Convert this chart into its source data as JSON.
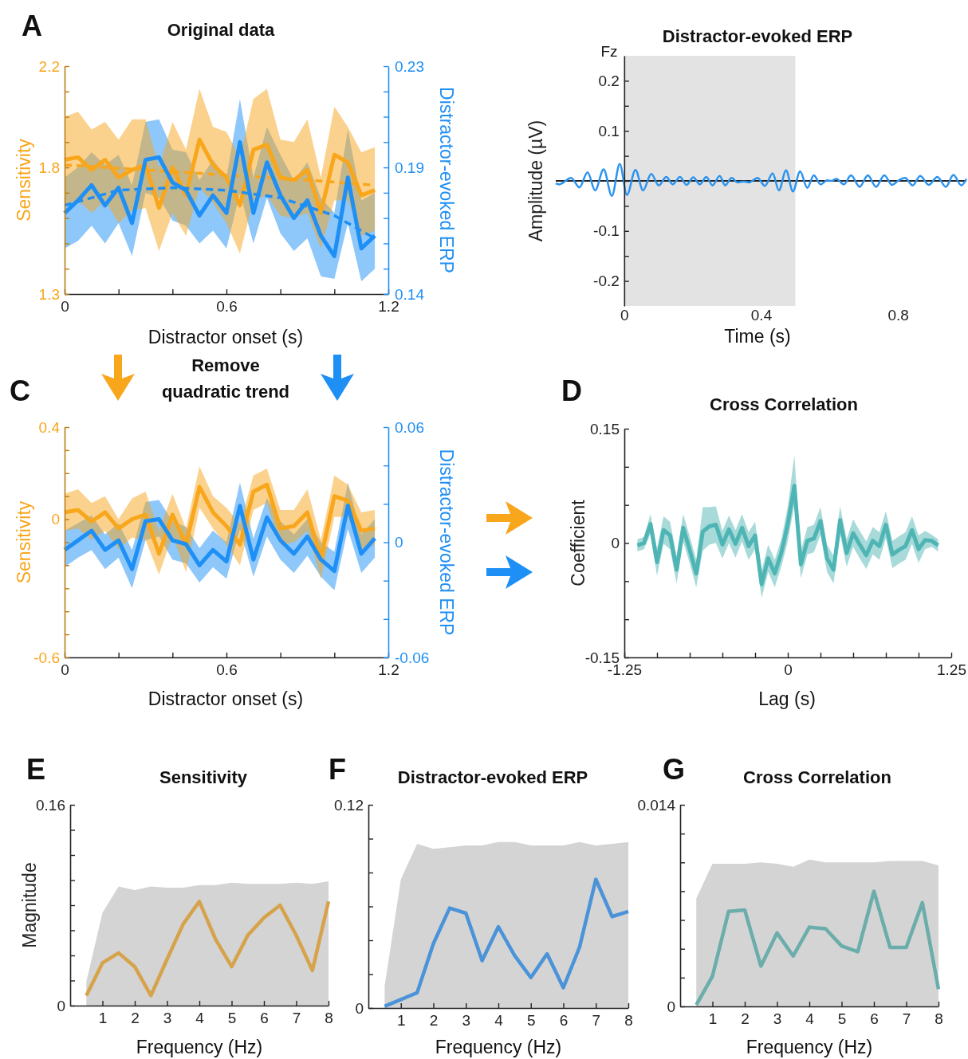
{
  "chart_data": [
    {
      "type": "line",
      "title": "Original data",
      "xlabel": "Distractor onset (s)",
      "ylabel": "Sensitivity",
      "y2label": "Distractor-evoked ERP",
      "annotations": [
        "A"
      ],
      "x": [
        0,
        0.05,
        0.1,
        0.15,
        0.2,
        0.25,
        0.3,
        0.35,
        0.4,
        0.45,
        0.5,
        0.55,
        0.6,
        0.65,
        0.7,
        0.75,
        0.8,
        0.85,
        0.9,
        0.95,
        1,
        1.05,
        1.1,
        1.15
      ],
      "series": [
        {
          "color": "#f8a61c",
          "values": [
            1.83,
            1.84,
            1.79,
            1.83,
            1.76,
            1.79,
            1.81,
            1.64,
            1.8,
            1.69,
            1.91,
            1.81,
            1.76,
            1.65,
            1.87,
            1.89,
            1.76,
            1.75,
            1.79,
            1.62,
            1.85,
            1.82,
            1.69,
            1.71
          ],
          "upper": [
            2.0,
            2.02,
            1.95,
            1.98,
            1.91,
            1.99,
            1.99,
            1.8,
            1.98,
            1.87,
            2.11,
            1.96,
            1.94,
            1.84,
            2.07,
            2.11,
            1.91,
            1.9,
            1.99,
            1.76,
            2.04,
            1.96,
            1.86,
            1.88
          ],
          "lower": [
            1.65,
            1.67,
            1.62,
            1.67,
            1.58,
            1.63,
            1.64,
            1.47,
            1.62,
            1.53,
            1.72,
            1.66,
            1.58,
            1.46,
            1.67,
            1.69,
            1.61,
            1.6,
            1.62,
            1.48,
            1.67,
            1.67,
            1.53,
            1.55
          ]
        },
        {
          "type": "line",
          "line_style": "dashed",
          "color": "#f8a61c",
          "x": [
            0,
            0.3,
            0.6,
            0.9,
            1.15
          ],
          "values": [
            1.81,
            1.79,
            1.77,
            1.75,
            1.73
          ]
        },
        {
          "axis": "y2",
          "color": "#1e8ff5",
          "values": [
            0.172,
            0.177,
            0.183,
            0.175,
            0.182,
            0.168,
            0.193,
            0.194,
            0.184,
            0.181,
            0.171,
            0.179,
            0.172,
            0.2,
            0.172,
            0.192,
            0.179,
            0.17,
            0.177,
            0.163,
            0.155,
            0.186,
            0.158,
            0.163
          ],
          "upper": [
            0.186,
            0.19,
            0.196,
            0.191,
            0.195,
            0.183,
            0.208,
            0.209,
            0.197,
            0.196,
            0.185,
            0.193,
            0.186,
            0.217,
            0.186,
            0.206,
            0.195,
            0.185,
            0.192,
            0.178,
            0.172,
            0.205,
            0.177,
            0.18
          ],
          "lower": [
            0.158,
            0.161,
            0.167,
            0.16,
            0.168,
            0.155,
            0.18,
            0.178,
            0.169,
            0.167,
            0.16,
            0.165,
            0.158,
            0.18,
            0.16,
            0.178,
            0.164,
            0.157,
            0.162,
            0.147,
            0.146,
            0.168,
            0.145,
            0.15
          ]
        },
        {
          "type": "line",
          "line_style": "dashed",
          "axis": "y2",
          "color": "#1e8ff5",
          "x": [
            0,
            0.2,
            0.4,
            0.6,
            0.8,
            1,
            1.15
          ],
          "values": [
            0.175,
            0.181,
            0.182,
            0.181,
            0.178,
            0.171,
            0.162
          ]
        }
      ],
      "xlim": [
        0,
        1.2
      ],
      "xticks": [
        0,
        {
          "value": 0.2,
          "label": null
        },
        {
          "value": 0.4,
          "label": null
        },
        0.6,
        {
          "value": 0.8,
          "label": null
        },
        {
          "value": 1,
          "label": null
        },
        1.2
      ],
      "ylim": [
        1.3,
        2.2
      ],
      "yticks": [
        1.3,
        {
          "value": 1.4,
          "label": null
        },
        {
          "value": 1.5,
          "label": null
        },
        {
          "value": 1.6,
          "label": null
        },
        {
          "value": 1.7,
          "label": null
        },
        1.8,
        {
          "value": 1.9,
          "label": null
        },
        {
          "value": 2,
          "label": null
        },
        {
          "value": 2.1,
          "label": null
        },
        2.2
      ],
      "y2lim": [
        0.14,
        0.23
      ],
      "y2ticks": [
        0.14,
        {
          "value": 0.15,
          "label": null
        },
        {
          "value": 0.16,
          "label": null
        },
        {
          "value": 0.17,
          "label": null
        },
        {
          "value": 0.18,
          "label": null
        },
        0.19,
        {
          "value": 0.2,
          "label": null
        },
        {
          "value": 0.21,
          "label": null
        },
        {
          "value": 0.22,
          "label": null
        },
        0.23
      ]
    },
    {
      "type": "line",
      "title": "Distractor-evoked ERP",
      "xlabel": "Time (s)",
      "ylabel": "Amplitude (µV)",
      "annotations": [
        "Fz"
      ],
      "x": [
        -0.2,
        -0.19,
        -0.155,
        -0.131,
        -0.107,
        -0.085,
        -0.06,
        -0.036,
        -0.013,
        0.008,
        0.033,
        0.055,
        0.079,
        0.101,
        0.123,
        0.142,
        0.163,
        0.182,
        0.202,
        0.221,
        0.24,
        0.258,
        0.279,
        0.295,
        0.314,
        0.331,
        0.349,
        0.365,
        0.39,
        0.411,
        0.434,
        0.452,
        0.473,
        0.493,
        0.514,
        0.535,
        0.554,
        0.574,
        0.593,
        0.605,
        0.62,
        0.642,
        0.663,
        0.688,
        0.712,
        0.736,
        0.76,
        0.783,
        0.802,
        0.821,
        0.843,
        0.865,
        0.89,
        0.915,
        0.94,
        0.962,
        0.985,
        1.0
      ],
      "series": [
        {
          "color": "#2a93f0",
          "values": [
            -0.005,
            -0.007,
            0.006,
            -0.013,
            0.017,
            -0.019,
            0.023,
            -0.03,
            0.034,
            -0.028,
            0.022,
            -0.019,
            0.014,
            -0.009,
            0.008,
            -0.007,
            0.008,
            -0.008,
            0.007,
            -0.007,
            0.008,
            -0.009,
            0.01,
            -0.009,
            0.006,
            -0.003,
            -0.001,
            -0.003,
            0.006,
            -0.01,
            0.015,
            -0.019,
            0.021,
            -0.021,
            0.019,
            -0.014,
            0.011,
            -0.007,
            0.001,
            0.0,
            0.004,
            -0.007,
            0.011,
            -0.012,
            0.011,
            -0.012,
            0.011,
            -0.008,
            0.001,
            0.006,
            -0.009,
            0.01,
            -0.008,
            0.008,
            -0.012,
            0.012,
            -0.009,
            0.004
          ]
        }
      ],
      "bands": [
        {
          "axis": "x",
          "from": 0,
          "to": 0.5,
          "color": "#e3e3e3"
        }
      ],
      "ref_lines": [
        {
          "axis": "y",
          "value": 0
        }
      ],
      "xlim": [
        -0.2,
        1.0
      ],
      "xticks": [
        0,
        0.4,
        0.8
      ],
      "ylim": [
        -0.25,
        0.25
      ],
      "yticks": [
        -0.2,
        {
          "value": -0.15,
          "label": null
        },
        -0.1,
        {
          "value": -0.05,
          "label": null
        },
        {
          "value": 0,
          "label": null
        },
        {
          "value": 0.05,
          "label": null
        },
        0.1,
        {
          "value": 0.15,
          "label": null
        },
        0.2
      ]
    },
    {
      "type": "line",
      "xlabel": "Distractor onset (s)",
      "ylabel": "Sensitivity",
      "y2label": "Distractor-evoked ERP",
      "annotations": [
        "C",
        "Remove quadratic trend"
      ],
      "x": [
        0,
        0.05,
        0.1,
        0.15,
        0.2,
        0.25,
        0.3,
        0.35,
        0.4,
        0.45,
        0.5,
        0.55,
        0.6,
        0.65,
        0.7,
        0.75,
        0.8,
        0.85,
        0.9,
        0.95,
        1,
        1.05,
        1.1,
        1.15
      ],
      "series": [
        {
          "color": "#f8a61c",
          "values": [
            0.03,
            0.04,
            -0.01,
            0.03,
            -0.04,
            0.0,
            0.02,
            -0.15,
            0.02,
            -0.11,
            0.14,
            0.03,
            -0.03,
            -0.11,
            0.12,
            0.15,
            -0.04,
            -0.03,
            0.03,
            -0.17,
            0.1,
            0.08,
            -0.05,
            -0.04
          ],
          "upper": [
            0.11,
            0.13,
            0.07,
            0.1,
            0.0,
            0.09,
            0.12,
            -0.05,
            0.11,
            -0.04,
            0.23,
            0.1,
            0.05,
            -0.02,
            0.19,
            0.22,
            0.04,
            0.04,
            0.13,
            -0.09,
            0.19,
            0.15,
            0.03,
            0.04
          ],
          "lower": [
            -0.05,
            -0.04,
            -0.09,
            -0.05,
            -0.13,
            -0.08,
            -0.09,
            -0.24,
            -0.07,
            -0.23,
            0.05,
            -0.04,
            -0.11,
            -0.2,
            0.04,
            0.07,
            -0.11,
            -0.1,
            -0.05,
            -0.26,
            0.01,
            0.01,
            -0.13,
            -0.11
          ]
        },
        {
          "axis": "y2",
          "color": "#1e8ff5",
          "values": [
            -0.004,
            0.001,
            0.006,
            -0.004,
            0.001,
            -0.014,
            0.011,
            0.012,
            0.001,
            -0.001,
            -0.012,
            -0.004,
            -0.01,
            0.019,
            -0.009,
            0.013,
            0.001,
            -0.006,
            0.003,
            -0.009,
            -0.015,
            0.019,
            -0.006,
            0.002
          ],
          "upper": [
            0.006,
            0.01,
            0.014,
            0.004,
            0.01,
            -0.004,
            0.021,
            0.022,
            0.011,
            0.008,
            -0.003,
            0.006,
            0.0,
            0.031,
            0.002,
            0.023,
            0.011,
            0.004,
            0.012,
            0.0,
            -0.005,
            0.031,
            0.004,
            0.012
          ],
          "lower": [
            -0.013,
            -0.008,
            -0.004,
            -0.014,
            -0.008,
            -0.024,
            0.001,
            0.003,
            -0.009,
            -0.011,
            -0.021,
            -0.013,
            -0.019,
            0.007,
            -0.018,
            0.003,
            -0.009,
            -0.016,
            -0.007,
            -0.018,
            -0.025,
            0.007,
            -0.016,
            -0.008
          ]
        }
      ],
      "xlim": [
        0,
        1.2
      ],
      "xticks": [
        0,
        {
          "value": 0.2,
          "label": null
        },
        {
          "value": 0.4,
          "label": null
        },
        0.6,
        {
          "value": 0.8,
          "label": null
        },
        {
          "value": 1,
          "label": null
        },
        1.2
      ],
      "ylim": [
        -0.6,
        0.4
      ],
      "yticks": [
        -0.6,
        {
          "value": -0.5,
          "label": null
        },
        {
          "value": -0.4,
          "label": null
        },
        {
          "value": -0.3,
          "label": null
        },
        {
          "value": -0.2,
          "label": null
        },
        {
          "value": -0.1,
          "label": null
        },
        0,
        {
          "value": 0.1,
          "label": null
        },
        {
          "value": 0.2,
          "label": null
        },
        {
          "value": 0.3,
          "label": null
        },
        0.4
      ],
      "y2lim": [
        -0.06,
        0.06
      ],
      "y2ticks": [
        -0.06,
        {
          "value": -0.04,
          "label": null
        },
        {
          "value": -0.02,
          "label": null
        },
        0,
        {
          "value": 0.02,
          "label": null
        },
        {
          "value": 0.04,
          "label": null
        },
        0.06
      ]
    },
    {
      "type": "line",
      "title": "Cross Correlation",
      "xlabel": "Lag (s)",
      "ylabel": "Coefficient",
      "annotations": [
        "D"
      ],
      "x": [
        -1.15,
        -1.1,
        -1.05,
        -1,
        -0.95,
        -0.9,
        -0.85,
        -0.8,
        -0.75,
        -0.7,
        -0.65,
        -0.6,
        -0.55,
        -0.5,
        -0.45,
        -0.4,
        -0.35,
        -0.3,
        -0.25,
        -0.2,
        -0.15,
        -0.1,
        -0.05,
        0,
        0.05,
        0.1,
        0.15,
        0.2,
        0.25,
        0.3,
        0.35,
        0.4,
        0.45,
        0.5,
        0.55,
        0.6,
        0.65,
        0.7,
        0.75,
        0.8,
        0.85,
        0.9,
        0.95,
        1,
        1.05,
        1.1,
        1.15
      ],
      "series": [
        {
          "color": "#4fb5b4",
          "values": [
            -0.003,
            0.0,
            0.025,
            -0.025,
            0.017,
            0.01,
            -0.035,
            0.02,
            -0.009,
            -0.04,
            0.015,
            0.022,
            0.024,
            -0.002,
            0.018,
            -0.001,
            0.02,
            -0.004,
            0.01,
            -0.054,
            -0.02,
            -0.04,
            -0.013,
            0.025,
            0.075,
            -0.028,
            0.003,
            0.006,
            0.029,
            -0.02,
            -0.035,
            0.03,
            -0.013,
            0.013,
            -0.002,
            -0.016,
            0.003,
            -0.004,
            0.024,
            -0.015,
            -0.009,
            -0.004,
            0.017,
            -0.008,
            0.004,
            0.003,
            -0.003
          ],
          "upper": [
            0.005,
            0.008,
            0.038,
            -0.007,
            0.035,
            0.028,
            -0.017,
            0.038,
            0.009,
            -0.022,
            0.047,
            0.047,
            0.048,
            0.016,
            0.036,
            0.017,
            0.038,
            0.014,
            0.028,
            -0.036,
            -0.002,
            -0.022,
            0.005,
            0.048,
            0.115,
            -0.01,
            0.021,
            0.024,
            0.047,
            -0.002,
            -0.017,
            0.048,
            0.005,
            0.031,
            0.016,
            0.002,
            0.021,
            0.014,
            0.042,
            0.003,
            0.009,
            0.014,
            0.035,
            0.01,
            0.016,
            0.011,
            0.005
          ],
          "lower": [
            -0.011,
            -0.008,
            0.012,
            -0.043,
            -0.001,
            -0.008,
            -0.053,
            0.002,
            -0.027,
            -0.058,
            -0.01,
            -0.002,
            0.0,
            -0.02,
            0.0,
            -0.019,
            0.002,
            -0.022,
            -0.008,
            -0.072,
            -0.038,
            -0.058,
            -0.031,
            0.002,
            0.05,
            -0.046,
            -0.015,
            -0.012,
            0.011,
            -0.038,
            -0.053,
            0.012,
            -0.031,
            -0.005,
            -0.02,
            -0.034,
            -0.015,
            -0.022,
            0.006,
            -0.033,
            -0.027,
            -0.022,
            -0.001,
            -0.026,
            -0.008,
            -0.005,
            -0.011
          ]
        }
      ],
      "xlim": [
        -1.25,
        1.25
      ],
      "xticks": [
        -1.25,
        {
          "value": -1,
          "label": null
        },
        {
          "value": -0.75,
          "label": null
        },
        {
          "value": -0.5,
          "label": null
        },
        {
          "value": -0.25,
          "label": null
        },
        0,
        {
          "value": 0.25,
          "label": null
        },
        {
          "value": 0.5,
          "label": null
        },
        {
          "value": 0.75,
          "label": null
        },
        {
          "value": 1,
          "label": null
        },
        1.25
      ],
      "ylim": [
        -0.15,
        0.15
      ],
      "yticks": [
        -0.15,
        {
          "value": -0.1,
          "label": null
        },
        {
          "value": -0.05,
          "label": null
        },
        0,
        {
          "value": 0.05,
          "label": null
        },
        {
          "value": 0.1,
          "label": null
        },
        0.15
      ]
    },
    {
      "type": "line",
      "title": "Sensitivity",
      "xlabel": "Frequency (Hz)",
      "ylabel": "Magnitude",
      "annotations": [
        "E"
      ],
      "x": [
        0.5,
        1,
        1.5,
        2,
        2.5,
        3,
        3.5,
        4,
        4.5,
        5,
        5.5,
        6,
        6.5,
        7,
        7.5,
        8
      ],
      "series": [
        {
          "type": "area",
          "color": "#d4d4d4",
          "values": [
            0.019,
            0.074,
            0.095,
            0.092,
            0.095,
            0.094,
            0.094,
            0.096,
            0.096,
            0.098,
            0.097,
            0.097,
            0.097,
            0.098,
            0.097,
            0.099
          ]
        },
        {
          "color": "#d6a24a",
          "values": [
            0.008,
            0.034,
            0.042,
            0.031,
            0.008,
            0.037,
            0.065,
            0.083,
            0.053,
            0.031,
            0.056,
            0.07,
            0.08,
            0.056,
            0.028,
            0.083
          ]
        }
      ],
      "xlim": [
        0,
        8
      ],
      "xticks": [
        1,
        2,
        3,
        4,
        5,
        6,
        7,
        8
      ],
      "ylim": [
        0,
        0.16
      ],
      "yticks": [
        0,
        {
          "value": 0.02,
          "label": null
        },
        {
          "value": 0.04,
          "label": null
        },
        {
          "value": 0.06,
          "label": null
        },
        {
          "value": 0.08,
          "label": null
        },
        {
          "value": 0.1,
          "label": null
        },
        {
          "value": 0.12,
          "label": null
        },
        {
          "value": 0.14,
          "label": null
        },
        0.16
      ]
    },
    {
      "type": "line",
      "title": "Distractor-evoked ERP",
      "xlabel": "Frequency (Hz)",
      "annotations": [
        "F"
      ],
      "x": [
        0.5,
        1,
        1.5,
        2,
        2.5,
        3,
        3.5,
        4,
        4.5,
        5,
        5.5,
        6,
        6.5,
        7,
        7.5,
        8
      ],
      "series": [
        {
          "type": "area",
          "color": "#d4d4d4",
          "values": [
            0.013,
            0.076,
            0.097,
            0.094,
            0.095,
            0.096,
            0.096,
            0.098,
            0.098,
            0.096,
            0.096,
            0.096,
            0.098,
            0.096,
            0.097,
            0.098
          ]
        },
        {
          "color": "#4b93d8",
          "values": [
            0.001,
            0.005,
            0.009,
            0.038,
            0.059,
            0.056,
            0.028,
            0.048,
            0.031,
            0.018,
            0.032,
            0.012,
            0.036,
            0.076,
            0.054,
            0.057
          ]
        }
      ],
      "xlim": [
        0,
        8
      ],
      "xticks": [
        1,
        2,
        3,
        4,
        5,
        6,
        7,
        8
      ],
      "ylim": [
        0,
        0.12
      ],
      "yticks": [
        0,
        {
          "value": 0.02,
          "label": null
        },
        {
          "value": 0.04,
          "label": null
        },
        {
          "value": 0.06,
          "label": null
        },
        {
          "value": 0.08,
          "label": null
        },
        {
          "value": 0.1,
          "label": null
        },
        0.12
      ]
    },
    {
      "type": "line",
      "title": "Cross Correlation",
      "xlabel": "Frequency (Hz)",
      "annotations": [
        "G"
      ],
      "x": [
        0.5,
        1,
        1.5,
        2,
        2.5,
        3,
        3.5,
        4,
        4.5,
        5,
        5.5,
        6,
        6.5,
        7,
        7.5,
        8
      ],
      "series": [
        {
          "type": "area",
          "color": "#d4d4d4",
          "values": [
            0.0075,
            0.0099,
            0.0099,
            0.0099,
            0.01,
            0.0099,
            0.0097,
            0.0102,
            0.01,
            0.01,
            0.01,
            0.01,
            0.0101,
            0.0101,
            0.0101,
            0.0098
          ]
        },
        {
          "color": "#6aadab",
          "values": [
            0.0001,
            0.0021,
            0.0066,
            0.0067,
            0.0028,
            0.0051,
            0.0035,
            0.0055,
            0.0054,
            0.0042,
            0.0038,
            0.008,
            0.0041,
            0.0041,
            0.0072,
            0.0012
          ]
        }
      ],
      "xlim": [
        0,
        8
      ],
      "xticks": [
        1,
        2,
        3,
        4,
        5,
        6,
        7,
        8
      ],
      "ylim": [
        0,
        0.014
      ],
      "yticks": [
        0,
        {
          "value": 0.002,
          "label": null
        },
        {
          "value": 0.004,
          "label": null
        },
        {
          "value": 0.006,
          "label": null
        },
        {
          "value": 0.008,
          "label": null
        },
        {
          "value": 0.01,
          "label": null
        },
        {
          "value": 0.012,
          "label": null
        },
        0.014
      ]
    }
  ]
}
